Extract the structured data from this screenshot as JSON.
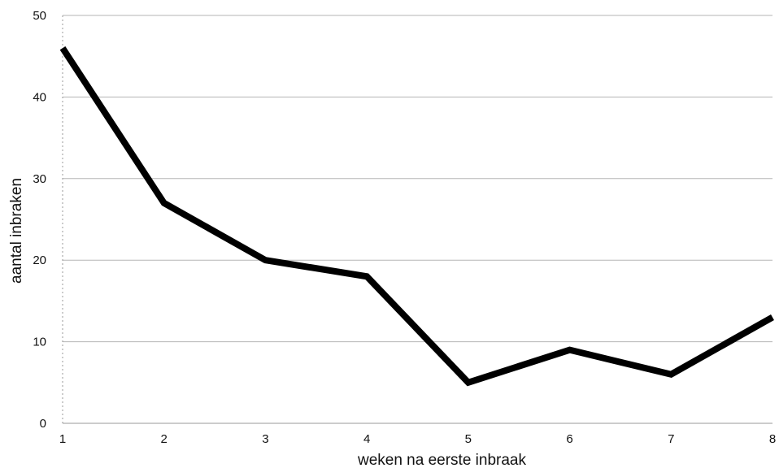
{
  "chart_data": {
    "type": "line",
    "title": "",
    "xlabel": "weken na eerste inbraak",
    "ylabel": "aantal inbraken",
    "x": [
      1,
      2,
      3,
      4,
      5,
      6,
      7,
      8
    ],
    "x_tick_labels": [
      "1",
      "2",
      "3",
      "4",
      "5",
      "6",
      "7",
      "8"
    ],
    "y_tick_labels": [
      "0",
      "10",
      "20",
      "30",
      "40",
      "50"
    ],
    "series": [
      {
        "values": [
          46,
          27,
          20,
          18,
          5,
          9,
          6,
          13
        ]
      }
    ],
    "ylim": [
      0,
      50
    ],
    "xlim": [
      1,
      8
    ],
    "grid": "horizontal",
    "legend": "none",
    "line_color": "#000000",
    "grid_color": "#b5b5b5"
  }
}
